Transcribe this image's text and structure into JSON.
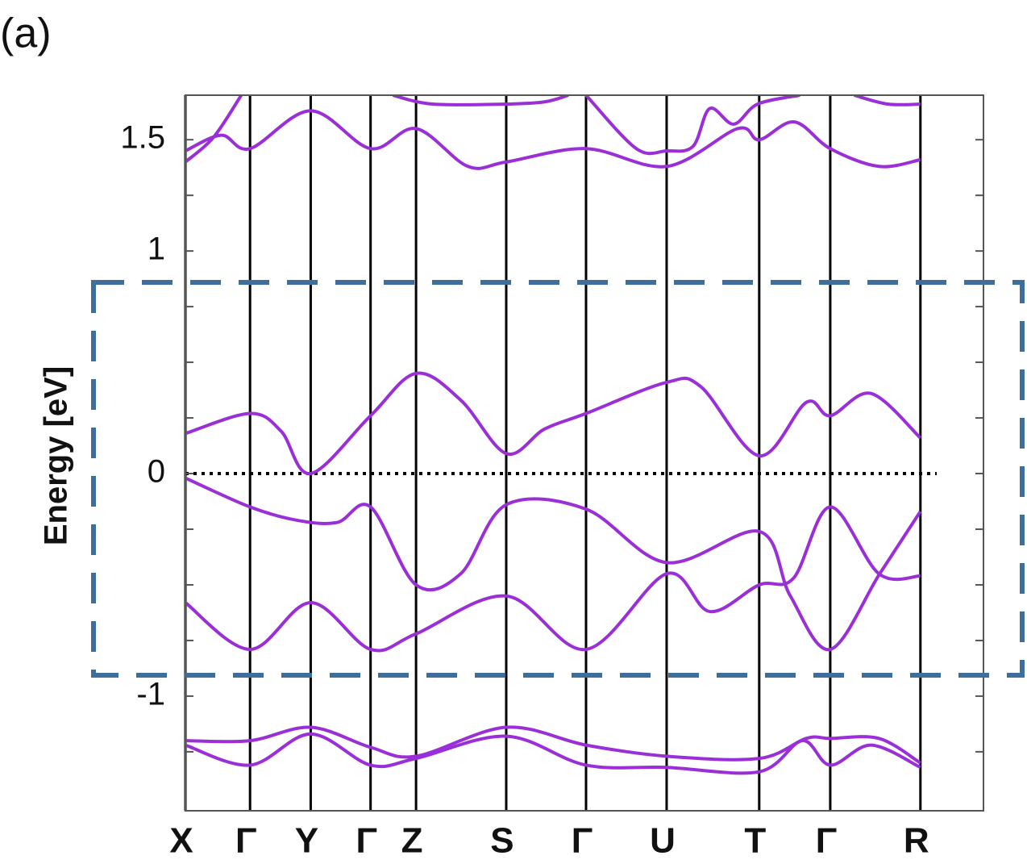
{
  "panel_label": "(a)",
  "chart_data": {
    "type": "line",
    "ylabel": "Energy [eV]",
    "ylim": [
      -1.515,
      1.7
    ],
    "yticks": [
      -1,
      0,
      1,
      1.5
    ],
    "yminor": [
      -1.25,
      -0.75,
      -0.5,
      -0.25,
      0.25,
      0.5,
      0.75,
      1.25
    ],
    "xlim": [
      0,
      1
    ],
    "xticks": [
      {
        "value": 0,
        "label": "X"
      },
      {
        "value": 0.081,
        "label": "Γ"
      },
      {
        "value": 0.157,
        "label": "Y"
      },
      {
        "value": 0.232,
        "label": "Γ"
      },
      {
        "value": 0.289,
        "label": "Z"
      },
      {
        "value": 0.402,
        "label": "S"
      },
      {
        "value": 0.502,
        "label": "Γ"
      },
      {
        "value": 0.603,
        "label": "U"
      },
      {
        "value": 0.719,
        "label": "T"
      },
      {
        "value": 0.808,
        "label": "Γ"
      },
      {
        "value": 0.921,
        "label": "R"
      }
    ],
    "fermi_level": 0,
    "color": "#9a2fd8",
    "series": [
      {
        "x": [
          0,
          0.081,
          0.12,
          0.157,
          0.232,
          0.289,
          0.345,
          0.402,
          0.45,
          0.502,
          0.603,
          0.646,
          0.719,
          0.778,
          0.808,
          0.859,
          0.921
        ],
        "values": [
          0.18,
          0.27,
          0.19,
          0,
          0.26,
          0.45,
          0.33,
          0.09,
          0.2,
          0.27,
          0.41,
          0.39,
          0.08,
          0.32,
          0.26,
          0.36,
          0.16
        ]
      },
      {
        "x": [
          0,
          0.081,
          0.14,
          0.19,
          0.232,
          0.289,
          0.345,
          0.402,
          0.502,
          0.603,
          0.719,
          0.758,
          0.808,
          0.87,
          0.921
        ],
        "values": [
          -0.02,
          -0.15,
          -0.21,
          -0.22,
          -0.15,
          -0.5,
          -0.45,
          -0.14,
          -0.16,
          -0.4,
          -0.26,
          -0.55,
          -0.79,
          -0.45,
          -0.17
        ]
      },
      {
        "x": [
          0,
          0.081,
          0.157,
          0.232,
          0.289,
          0.402,
          0.502,
          0.603,
          0.657,
          0.719,
          0.762,
          0.808,
          0.869,
          0.921
        ],
        "values": [
          -0.58,
          -0.79,
          -0.58,
          -0.79,
          -0.72,
          -0.55,
          -0.79,
          -0.45,
          -0.62,
          -0.5,
          -0.47,
          -0.15,
          -0.45,
          -0.46
        ]
      },
      {
        "x": [
          0,
          0.081,
          0.157,
          0.232,
          0.289,
          0.402,
          0.502,
          0.603,
          0.719,
          0.778,
          0.808,
          0.869,
          0.921
        ],
        "values": [
          -1.2,
          -1.2,
          -1.14,
          -1.23,
          -1.27,
          -1.14,
          -1.22,
          -1.27,
          -1.28,
          -1.19,
          -1.19,
          -1.19,
          -1.3
        ]
      },
      {
        "x": [
          0,
          0.081,
          0.157,
          0.232,
          0.289,
          0.402,
          0.502,
          0.603,
          0.719,
          0.773,
          0.808,
          0.859,
          0.921
        ],
        "values": [
          -1.22,
          -1.31,
          -1.17,
          -1.31,
          -1.28,
          -1.18,
          -1.31,
          -1.32,
          -1.34,
          -1.2,
          -1.31,
          -1.22,
          -1.32
        ]
      },
      {
        "x": [
          0,
          0.045,
          0.081,
          0.157,
          0.232,
          0.289,
          0.354,
          0.402,
          0.502,
          0.603,
          0.692,
          0.719,
          0.763,
          0.808,
          0.869,
          0.921
        ],
        "values": [
          1.45,
          1.52,
          1.46,
          1.63,
          1.46,
          1.55,
          1.38,
          1.4,
          1.46,
          1.38,
          1.55,
          1.5,
          1.58,
          1.46,
          1.38,
          1.41
        ]
      },
      {
        "x": [
          0,
          0.035,
          0.07
        ],
        "values": [
          1.4,
          1.51,
          1.7
        ]
      },
      {
        "x": [
          0.502,
          0.565,
          0.603,
          0.636,
          0.657,
          0.687,
          0.717,
          0.77
        ],
        "values": [
          1.7,
          1.46,
          1.45,
          1.47,
          1.64,
          1.57,
          1.66,
          1.7
        ]
      },
      {
        "x": [
          0.838,
          0.88,
          0.921
        ],
        "values": [
          1.7,
          1.66,
          1.66
        ]
      },
      {
        "x": [
          0.26,
          0.31,
          0.402,
          0.45,
          0.48
        ],
        "values": [
          1.7,
          1.66,
          1.66,
          1.67,
          1.7
        ]
      }
    ]
  }
}
